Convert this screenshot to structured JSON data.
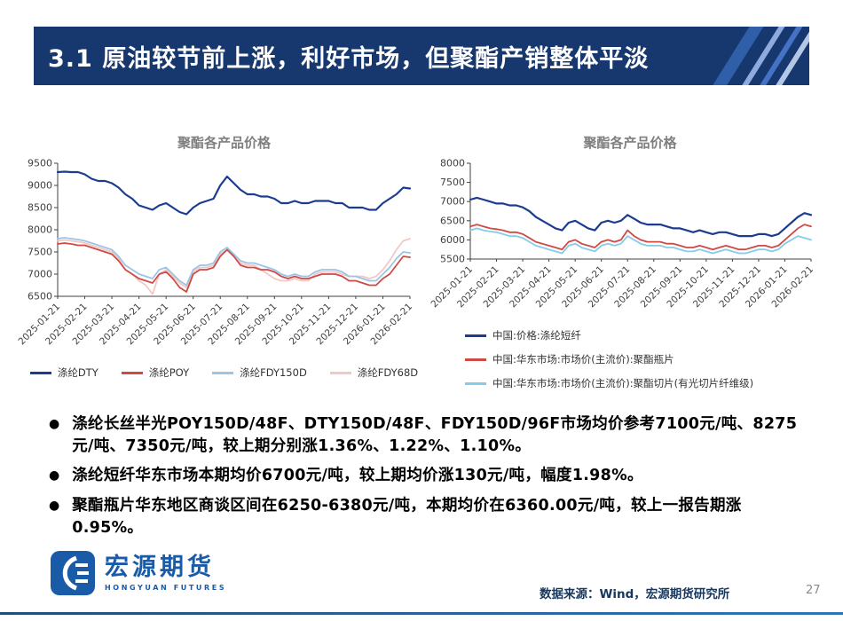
{
  "slide": {
    "title": "3.1 原油较节前上涨，利好市场，但聚酯产销整体平淡",
    "page_number": "27",
    "source": "数据来源：Wind，宏源期货研究所"
  },
  "logo": {
    "name": "宏源期货",
    "subtitle": "HONGYUAN FUTURES"
  },
  "colors": {
    "banner": "#16386e",
    "logo_blue": "#1a5ba8",
    "source_text": "#17375e",
    "chart_title": "#7f7f7f"
  },
  "bullets": [
    "涤纶长丝半光POY150D/48F、DTY150D/48F、FDY150D/96F市场均价参考7100元/吨、8275元/吨、7350元/吨，较上期分别涨1.36%、1.22%、1.10%。",
    "涤纶短纤华东市场本期均价6700元/吨，较上期均价涨130元/吨，幅度1.98%。",
    "聚酯瓶片华东地区商谈区间在6250-6380元/吨，本期均价在6360.00元/吨，较上一报告期涨0.95%。"
  ],
  "chart_data": [
    {
      "type": "line",
      "title": "聚酯各产品价格",
      "ylim": [
        6500,
        9500
      ],
      "y_ticks": [
        6500,
        7000,
        7500,
        8000,
        8500,
        9000,
        9500
      ],
      "x_labels": [
        "2025-01-21",
        "2025-02-21",
        "2025-03-21",
        "2025-04-21",
        "2025-05-21",
        "2025-06-21",
        "2025-07-21",
        "2025-08-21",
        "2025-09-21",
        "2025-10-21",
        "2025-11-21",
        "2025-12-21",
        "2026-01-21",
        "2026-02-21"
      ],
      "points_per_label": 4,
      "grid": false,
      "legend_position": "bottom",
      "series": [
        {
          "name": "涤纶DTY",
          "color": "#1b3c8f",
          "width": 2.2,
          "values": [
            9300,
            9310,
            9300,
            9300,
            9250,
            9150,
            9100,
            9100,
            9050,
            8950,
            8800,
            8700,
            8550,
            8500,
            8450,
            8550,
            8600,
            8500,
            8400,
            8350,
            8500,
            8600,
            8650,
            8700,
            9000,
            9200,
            9050,
            8900,
            8800,
            8800,
            8750,
            8750,
            8700,
            8600,
            8600,
            8650,
            8600,
            8600,
            8650,
            8650,
            8650,
            8600,
            8600,
            8500,
            8500,
            8500,
            8450,
            8450,
            8600,
            8700,
            8800,
            8950,
            8930
          ]
        },
        {
          "name": "涤纶POY",
          "color": "#cf4a44",
          "width": 1.8,
          "values": [
            7680,
            7700,
            7680,
            7650,
            7650,
            7600,
            7550,
            7500,
            7450,
            7300,
            7100,
            7000,
            6900,
            6850,
            6800,
            7000,
            7050,
            6900,
            6700,
            6600,
            7000,
            7100,
            7100,
            7150,
            7400,
            7550,
            7400,
            7200,
            7150,
            7150,
            7100,
            7100,
            7050,
            6950,
            6900,
            6950,
            6900,
            6900,
            6950,
            7000,
            7000,
            7000,
            6950,
            6850,
            6850,
            6800,
            6750,
            6750,
            6900,
            7000,
            7200,
            7400,
            7380
          ]
        },
        {
          "name": "涤纶FDY150D",
          "color": "#9dc3e6",
          "width": 1.8,
          "values": [
            7800,
            7820,
            7800,
            7780,
            7750,
            7700,
            7650,
            7600,
            7550,
            7400,
            7200,
            7100,
            7000,
            6950,
            6900,
            7100,
            7150,
            7000,
            6850,
            6750,
            7100,
            7200,
            7200,
            7250,
            7500,
            7600,
            7450,
            7300,
            7250,
            7250,
            7200,
            7150,
            7100,
            7000,
            6950,
            7000,
            6950,
            6950,
            7050,
            7100,
            7100,
            7100,
            7050,
            6950,
            6950,
            6900,
            6850,
            6850,
            7000,
            7150,
            7350,
            7500,
            7480
          ]
        },
        {
          "name": "涤纶FDY68D",
          "color": "#f2c8c6",
          "width": 1.8,
          "values": [
            7750,
            7770,
            7750,
            7730,
            7700,
            7650,
            7600,
            7550,
            7500,
            7350,
            7100,
            7000,
            6850,
            6750,
            6550,
            7000,
            7100,
            6950,
            6800,
            6700,
            7050,
            7150,
            7150,
            7200,
            7450,
            7550,
            7400,
            7250,
            7200,
            7200,
            7100,
            7000,
            6900,
            6850,
            6850,
            6900,
            6850,
            6850,
            7000,
            7050,
            7050,
            7050,
            7000,
            6950,
            6950,
            6950,
            6900,
            6950,
            7100,
            7300,
            7550,
            7750,
            7800
          ]
        }
      ]
    },
    {
      "type": "line",
      "title": "聚酯各产品价格",
      "ylim": [
        5500,
        8000
      ],
      "y_ticks": [
        5500,
        6000,
        6500,
        7000,
        7500,
        8000
      ],
      "x_labels": [
        "2025-01-21",
        "2025-02-21",
        "2025-03-21",
        "2025-04-21",
        "2025-05-21",
        "2025-06-21",
        "2025-07-21",
        "2025-08-21",
        "2025-09-21",
        "2025-10-21",
        "2025-11-21",
        "2025-12-21",
        "2026-01-21",
        "2026-02-21"
      ],
      "points_per_label": 4,
      "grid": false,
      "legend_position": "bottom-left",
      "series": [
        {
          "name": "中国:价格:涤纶短纤",
          "color": "#1b3c8f",
          "width": 2.2,
          "values": [
            7050,
            7100,
            7050,
            7000,
            6950,
            6950,
            6900,
            6900,
            6850,
            6750,
            6600,
            6500,
            6400,
            6300,
            6250,
            6450,
            6500,
            6400,
            6300,
            6250,
            6450,
            6500,
            6450,
            6500,
            6650,
            6550,
            6450,
            6400,
            6400,
            6400,
            6350,
            6300,
            6300,
            6250,
            6200,
            6250,
            6200,
            6150,
            6200,
            6200,
            6150,
            6100,
            6100,
            6100,
            6150,
            6150,
            6100,
            6150,
            6300,
            6450,
            6600,
            6700,
            6650
          ]
        },
        {
          "name": "中国:华东市场:市场价(主流价):聚酯瓶片",
          "color": "#cf4a44",
          "width": 1.8,
          "values": [
            6350,
            6400,
            6350,
            6300,
            6280,
            6250,
            6200,
            6200,
            6150,
            6050,
            5950,
            5900,
            5850,
            5800,
            5750,
            5950,
            6000,
            5900,
            5850,
            5800,
            5950,
            6000,
            5950,
            6000,
            6250,
            6100,
            6000,
            5950,
            5950,
            5950,
            5900,
            5900,
            5850,
            5800,
            5800,
            5850,
            5800,
            5750,
            5800,
            5850,
            5800,
            5750,
            5750,
            5800,
            5850,
            5850,
            5800,
            5850,
            6000,
            6150,
            6300,
            6400,
            6350
          ]
        },
        {
          "name": "中国:华东市场:市场价(主流价):聚酯切片(有光切片纤维级)",
          "color": "#86cbe8",
          "width": 1.8,
          "values": [
            6250,
            6300,
            6250,
            6220,
            6200,
            6150,
            6100,
            6100,
            6050,
            5950,
            5850,
            5800,
            5750,
            5700,
            5650,
            5850,
            5900,
            5800,
            5750,
            5700,
            5850,
            5900,
            5850,
            5900,
            6100,
            6000,
            5900,
            5850,
            5850,
            5850,
            5800,
            5800,
            5750,
            5700,
            5700,
            5750,
            5700,
            5650,
            5700,
            5750,
            5700,
            5650,
            5650,
            5700,
            5750,
            5750,
            5700,
            5750,
            5900,
            6000,
            6100,
            6050,
            6000
          ]
        }
      ]
    }
  ]
}
